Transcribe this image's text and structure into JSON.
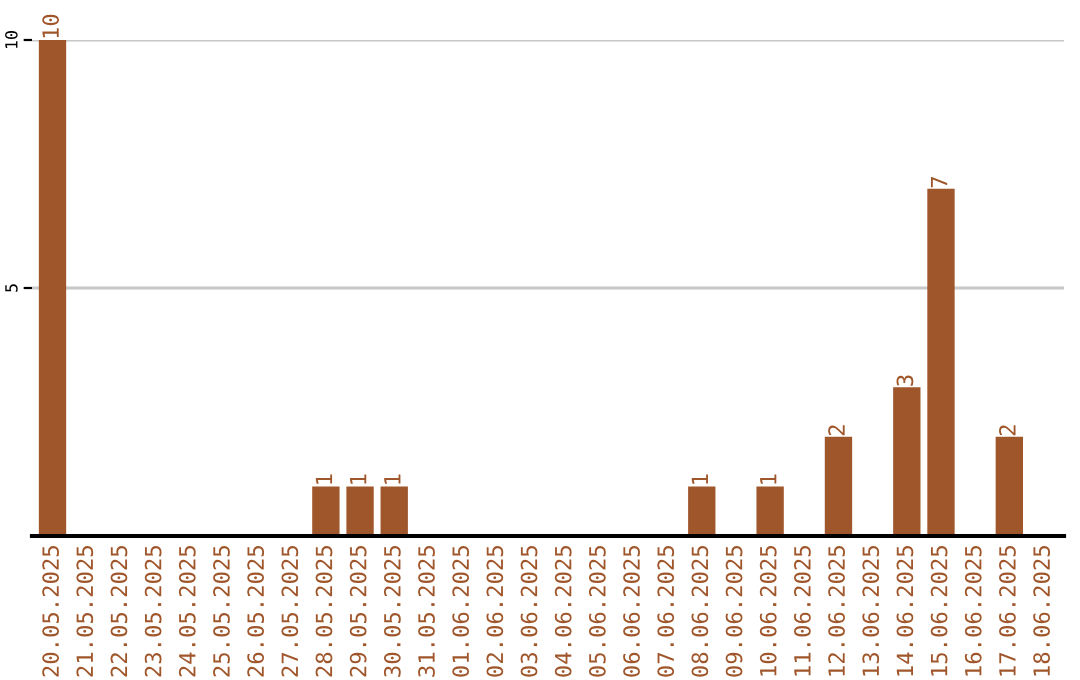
{
  "chart_data": {
    "type": "bar",
    "categories": [
      "20.05.2025",
      "21.05.2025",
      "22.05.2025",
      "23.05.2025",
      "24.05.2025",
      "25.05.2025",
      "26.05.2025",
      "27.05.2025",
      "28.05.2025",
      "29.05.2025",
      "30.05.2025",
      "31.05.2025",
      "01.06.2025",
      "02.06.2025",
      "03.06.2025",
      "04.06.2025",
      "05.06.2025",
      "06.06.2025",
      "07.06.2025",
      "08.06.2025",
      "09.06.2025",
      "10.06.2025",
      "11.06.2025",
      "12.06.2025",
      "13.06.2025",
      "14.06.2025",
      "15.06.2025",
      "16.06.2025",
      "17.06.2025",
      "18.06.2025"
    ],
    "values": [
      10,
      0,
      0,
      0,
      0,
      0,
      0,
      0,
      1,
      1,
      1,
      0,
      0,
      0,
      0,
      0,
      0,
      0,
      0,
      1,
      0,
      1,
      0,
      2,
      0,
      3,
      7,
      0,
      2,
      0
    ],
    "value_labels": [
      "10",
      null,
      null,
      null,
      null,
      null,
      null,
      null,
      "1",
      "1",
      "1",
      null,
      null,
      null,
      null,
      null,
      null,
      null,
      null,
      "1",
      null,
      "1",
      null,
      "2",
      null,
      "3",
      "7",
      null,
      "2",
      null
    ],
    "color": "#a0562b",
    "ylim": [
      0,
      10
    ],
    "yticks": [
      5,
      10
    ],
    "grid": "y",
    "legend": false
  }
}
